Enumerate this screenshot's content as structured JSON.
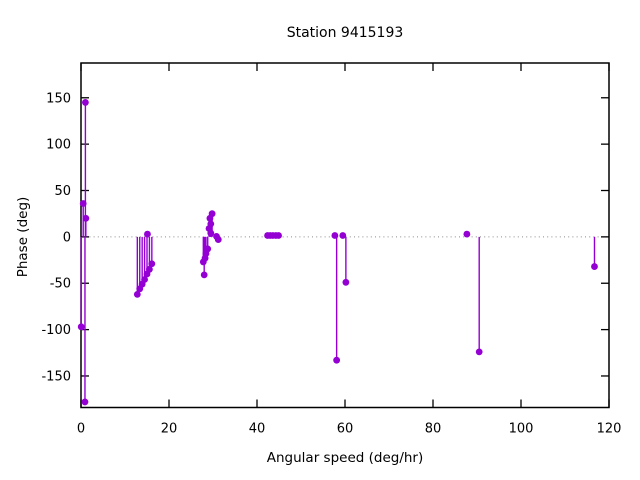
{
  "chart_data": {
    "type": "scatter",
    "style": "impulses+points",
    "title": "Station 9415193",
    "xlabel": "Angular speed (deg/hr)",
    "ylabel": "Phase (deg)",
    "xlim": [
      0,
      120
    ],
    "ylim": [
      -184,
      187.5
    ],
    "xticks": [
      0,
      20,
      40,
      60,
      80,
      100,
      120
    ],
    "yticks": [
      -150,
      -100,
      -50,
      0,
      50,
      100,
      150
    ],
    "legend_position": "none",
    "grid": "dotted horizontal line at y=0 only",
    "points": [
      [
        1.0,
        145
      ],
      [
        0.5,
        36
      ],
      [
        1.1,
        20
      ],
      [
        0.05,
        -97
      ],
      [
        0.9,
        -178
      ],
      [
        12.8,
        -62
      ],
      [
        13.35,
        -56
      ],
      [
        13.9,
        -51
      ],
      [
        14.45,
        -46
      ],
      [
        15.0,
        -40
      ],
      [
        15.1,
        3
      ],
      [
        15.55,
        -35
      ],
      [
        16.1,
        -29
      ],
      [
        27.8,
        -27
      ],
      [
        28.0,
        -41
      ],
      [
        28.2,
        -23
      ],
      [
        28.4,
        -18
      ],
      [
        28.8,
        -13
      ],
      [
        29.1,
        9
      ],
      [
        29.3,
        20
      ],
      [
        29.5,
        4
      ],
      [
        29.5,
        14
      ],
      [
        29.8,
        25
      ],
      [
        30.8,
        0.5
      ],
      [
        31.2,
        -3
      ],
      [
        42.4,
        1.5
      ],
      [
        43.0,
        1.5
      ],
      [
        43.6,
        1.5
      ],
      [
        44.3,
        1.5
      ],
      [
        44.9,
        1.5
      ],
      [
        57.7,
        1.5
      ],
      [
        59.5,
        1.5
      ],
      [
        58.1,
        -133
      ],
      [
        60.2,
        -49
      ],
      [
        87.7,
        3
      ],
      [
        90.5,
        -124
      ],
      [
        116.7,
        -32
      ]
    ]
  },
  "colors": {
    "series": "#9400d3",
    "text": "#000000",
    "border": "#000000",
    "zero_line": "#8a8a8a",
    "background": "#ffffff"
  }
}
